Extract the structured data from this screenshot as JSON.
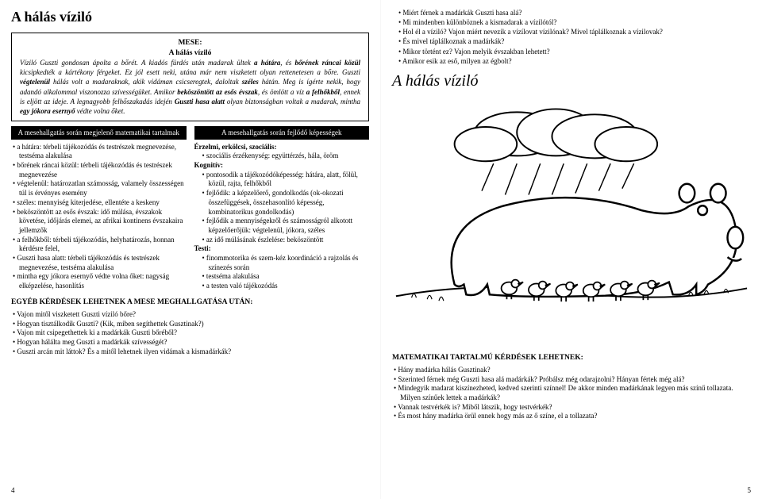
{
  "left": {
    "title": "A hálás víziló",
    "mese": {
      "heading1": "MESE:",
      "heading2": "A hálás víziló",
      "body_html": "<i>Víziló Guszti gondosan ápolta a bőrét. A kiadós fürdés után madarak ültek </i><b><i>a hátára</i></b><i>, és </i><b><i>bőrének ráncai közül</i></b><i> kicsipkedték a kártékony férgeket. Ez jól esett neki, utána már nem viszketett olyan rettenetesen a bőre. Guszti </i><b><i>végtelenül</i></b><i> hálás volt a madaraknak, akik vidáman csicseregtek, daloltak </i><b><i>széles</i></b><i> hátán. Meg is ígérte nekik, hogy adandó alkalommal viszonozza szívességüket. Amikor </i><b><i>beköszöntött az esős évszak</i></b><i>, és ömlött a víz </i><b><i>a felhőkből</i></b><i>, ennek is eljött az ideje. A legnagyobb felhőszakadás idején </i><b><i>Guszti hasa alatt</i></b><i> olyan biztonságban voltak a madarak, mintha </i><b><i>egy jókora esernyő</i></b><i> védte volna őket.</i>"
    },
    "col1_header": "A mesehallgatás során megjelenő matematikai tartalmak",
    "col2_header": "A mesehallgatás során fejlődő képességek",
    "col1_items": [
      "a hátára: térbeli tájékozódás és testrészek megnevezése, testséma alakulása",
      "bőrének ráncai közül: térbeli tájékozódás és testrészek megnevezése",
      "végtelenül: határozatlan számosság, valamely összességen túl is érvényes esemény",
      "széles: mennyiség kiterjedése, ellentéte a keskeny",
      "beköszöntött az esős évszak: idő múlása, évszakok követése, időjárás elemei, az afrikai kontinens évszakaira jellemzők",
      "a felhőkből: térbeli tájékozódás, helyhatározás, honnan kérdésre felel,",
      "Guszti hasa alatt: térbeli tájékozódás és testrészek megnevezése, testséma alakulása",
      "mintha egy jókora esernyő védte volna őket: nagyság elképzelése, hasonlítás"
    ],
    "col2_groups": [
      {
        "h": "Érzelmi, erkölcsi, szociális:",
        "items": [
          "szociális érzékenység: együttérzés, hála, öröm"
        ]
      },
      {
        "h": "Kognitív:",
        "items": [
          "pontosodik a tájékozódóképesség: hátára, alatt, fölül, közül, rajta, felhőkből",
          "fejlődik: a képzelőerő, gondolkodás (ok-okozati összefüggések, összehasonlító képesség, kombinatorikus gondolkodás)",
          "fejlődik a mennyiségekről és számosságról alkotott képzelőerőjük: végtelenül, jókora, széles",
          "az idő múlásának észlelése: beköszöntött"
        ]
      },
      {
        "h": "Testi:",
        "items": [
          "finommotorika és szem-kéz koordináció a rajzolás és színezés során",
          "testséma alakulása",
          "a testen való tájékozódás"
        ]
      }
    ],
    "egy_heading": "EGYÉB KÉRDÉSEK LEHETNEK A MESE MEGHALLGATÁSA UTÁN:",
    "egy_items": [
      "Vajon mitől viszketett Guszti víziló bőre?",
      "Hogyan tisztálkodik Guszti? (Kik, miben segíthettek Gusztinak?)",
      "Vajon mit csipegethettek ki a madárkák Guszti bőréből?",
      "Hogyan hálálta meg Guszti a madárkák szívességét?",
      "Guszti arcán mit láttok? És a mitől lehetnek ilyen vidámak a kismadárkák?"
    ],
    "pagenum": "4"
  },
  "right": {
    "top_questions": [
      "Miért férnek a madárkák Guszti hasa alá?",
      "Mi mindenben különböznek a kismadarak a vízilótól?",
      "Hol él a víziló? Vajon miért nevezik a vízílovat vízilónak? Mivel táplálkoznak a vízilovak?",
      "És mivel táplálkoznak a madárkák?",
      "Mikor történt ez? Vajon melyik évszakban lehetett?",
      "Amikor esik az eső, milyen az égbolt?"
    ],
    "title": "A hálás víziló",
    "math_heading": "MATEMATIKAI TARTALMÚ KÉRDÉSEK LEHETNEK:",
    "math_items": [
      "Hány madárka hálás Gusztinak?",
      "Szerinted férnek még Guszti hasa alá madárkák? Próbálsz még odarajzolni? Hányan fértek még alá?",
      "Mindegyik madarat kiszínezheted, kedved szerinti színnel! De akkor minden madárkának legyen más színű tollazata. Milyen színűek lettek a madárkák?",
      "Vannak testvérkék is? Miből látszik, hogy testvérkék?",
      "És most hány madárka örül ennek hogy más az ő színe, el a tollazata?"
    ],
    "pagenum": "5"
  }
}
